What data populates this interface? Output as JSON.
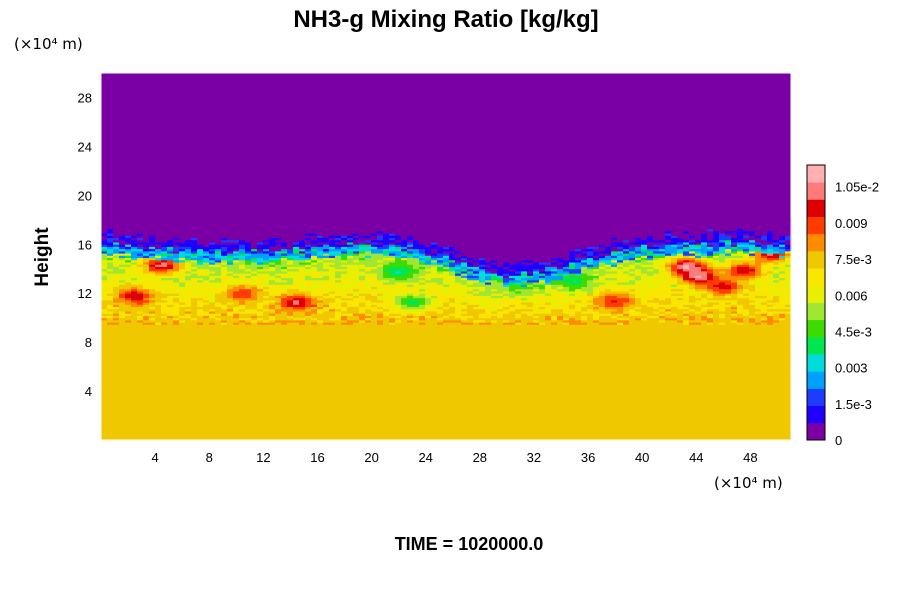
{
  "chart_data": {
    "type": "heatmap",
    "title": "NH3-g Mixing Ratio [kg/kg]",
    "ylabel": "Height",
    "x_unit_label": "(×10⁴ m)",
    "y_unit_label": "(×10⁴ m)",
    "footer": "TIME = 1020000.0",
    "x_range": [
      0,
      51
    ],
    "y_range": [
      0,
      30
    ],
    "x_ticks": [
      4,
      8,
      12,
      16,
      20,
      24,
      28,
      32,
      36,
      40,
      44,
      48
    ],
    "y_ticks": [
      4,
      8,
      12,
      16,
      20,
      24,
      28
    ],
    "colorbar": {
      "range": [
        0,
        0.0114
      ],
      "ticks": [
        {
          "value": 0,
          "label": "0"
        },
        {
          "value": 0.0015,
          "label": "1.5e-3"
        },
        {
          "value": 0.003,
          "label": "0.003"
        },
        {
          "value": 0.0045,
          "label": "4.5e-3"
        },
        {
          "value": 0.006,
          "label": "0.006"
        },
        {
          "value": 0.0075,
          "label": "7.5e-3"
        },
        {
          "value": 0.009,
          "label": "0.009"
        },
        {
          "value": 0.0105,
          "label": "1.05e-2"
        }
      ]
    },
    "field": {
      "lower_layer_value": 0.0076,
      "mixed_layer_bottom": 9.5,
      "cloud_top_height": [
        16.6,
        16.3,
        16.1,
        15.9,
        15.8,
        15.9,
        16.2,
        16.4,
        16.6,
        16.2,
        15.4,
        14.3,
        14.0,
        14.4,
        15.2,
        15.9,
        16.3,
        16.5,
        16.6,
        16.6,
        16.4
      ],
      "upper_value": 0.0,
      "features": [
        {
          "x": 4.5,
          "y": 14.3,
          "value": 0.0103
        },
        {
          "x": 14.5,
          "y": 11.3,
          "value": 0.0101
        },
        {
          "x": 2.5,
          "y": 11.8,
          "value": 0.0099
        },
        {
          "x": 43.3,
          "y": 14.2,
          "value": 0.011
        },
        {
          "x": 44.2,
          "y": 13.4,
          "value": 0.0108
        },
        {
          "x": 47.5,
          "y": 13.9,
          "value": 0.0099
        },
        {
          "x": 49.5,
          "y": 15.2,
          "value": 0.0101
        },
        {
          "x": 46.0,
          "y": 12.6,
          "value": 0.0097
        },
        {
          "x": 23.0,
          "y": 11.3,
          "value": 0.004
        },
        {
          "x": 30.5,
          "y": 12.8,
          "value": 0.0045
        },
        {
          "x": 35.0,
          "y": 13.0,
          "value": 0.004
        },
        {
          "x": 22.0,
          "y": 13.8,
          "value": 0.0035
        },
        {
          "x": 10.5,
          "y": 12.0,
          "value": 0.0092
        },
        {
          "x": 38.0,
          "y": 11.4,
          "value": 0.0094
        }
      ]
    }
  },
  "colors": {
    "scale": [
      "#7a00a6",
      "#1f00ff",
      "#1e3cff",
      "#00a0ff",
      "#00dcdc",
      "#00e650",
      "#3cdc00",
      "#a0e632",
      "#e6f000",
      "#fae600",
      "#f0c800",
      "#ff8c00",
      "#ff3c00",
      "#dc0000",
      "#ff7a7a",
      "#ffb0b0"
    ]
  }
}
